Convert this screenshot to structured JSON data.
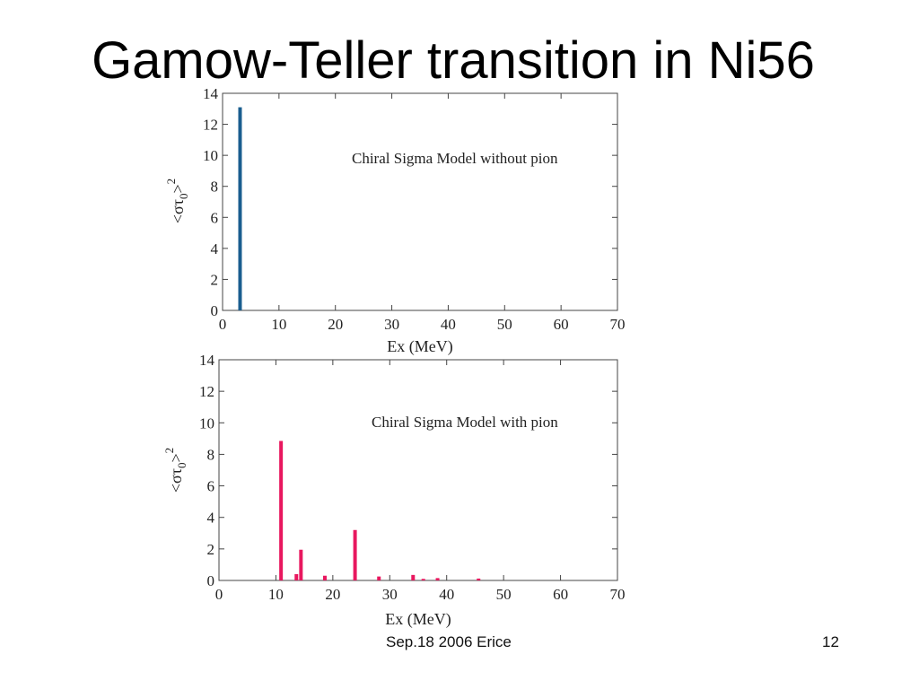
{
  "slide": {
    "title": "Gamow-Teller transition in Ni56",
    "footer": "Sep.18 2006 Erice",
    "page_number": "12"
  },
  "chart_data": [
    {
      "type": "bar",
      "annotation": "Chiral Sigma Model without pion",
      "xlabel": "Ex (MeV)",
      "ylabel": "<στ0>2",
      "xlim": [
        0,
        70
      ],
      "ylim": [
        0,
        14
      ],
      "xticks": [
        0,
        10,
        20,
        30,
        40,
        50,
        60,
        70
      ],
      "yticks": [
        0,
        2,
        4,
        6,
        8,
        10,
        12,
        14
      ],
      "color": "#1a5e8f",
      "grid": false,
      "x": [
        3.1
      ],
      "values": [
        13.1
      ]
    },
    {
      "type": "bar",
      "annotation": "Chiral Sigma Model with pion",
      "xlabel": "Ex (MeV)",
      "ylabel": "<στ0>2",
      "xlim": [
        0,
        70
      ],
      "ylim": [
        0,
        14
      ],
      "xticks": [
        0,
        10,
        20,
        30,
        40,
        50,
        60,
        70
      ],
      "yticks": [
        0,
        2,
        4,
        6,
        8,
        10,
        12,
        14
      ],
      "color": "#e8185f",
      "grid": false,
      "x": [
        10.9,
        13.6,
        14.4,
        18.6,
        23.9,
        28.1,
        34.1,
        35.9,
        38.4,
        45.6
      ],
      "values": [
        8.85,
        0.4,
        1.95,
        0.3,
        3.2,
        0.25,
        0.35,
        0.1,
        0.15,
        0.12
      ]
    }
  ]
}
